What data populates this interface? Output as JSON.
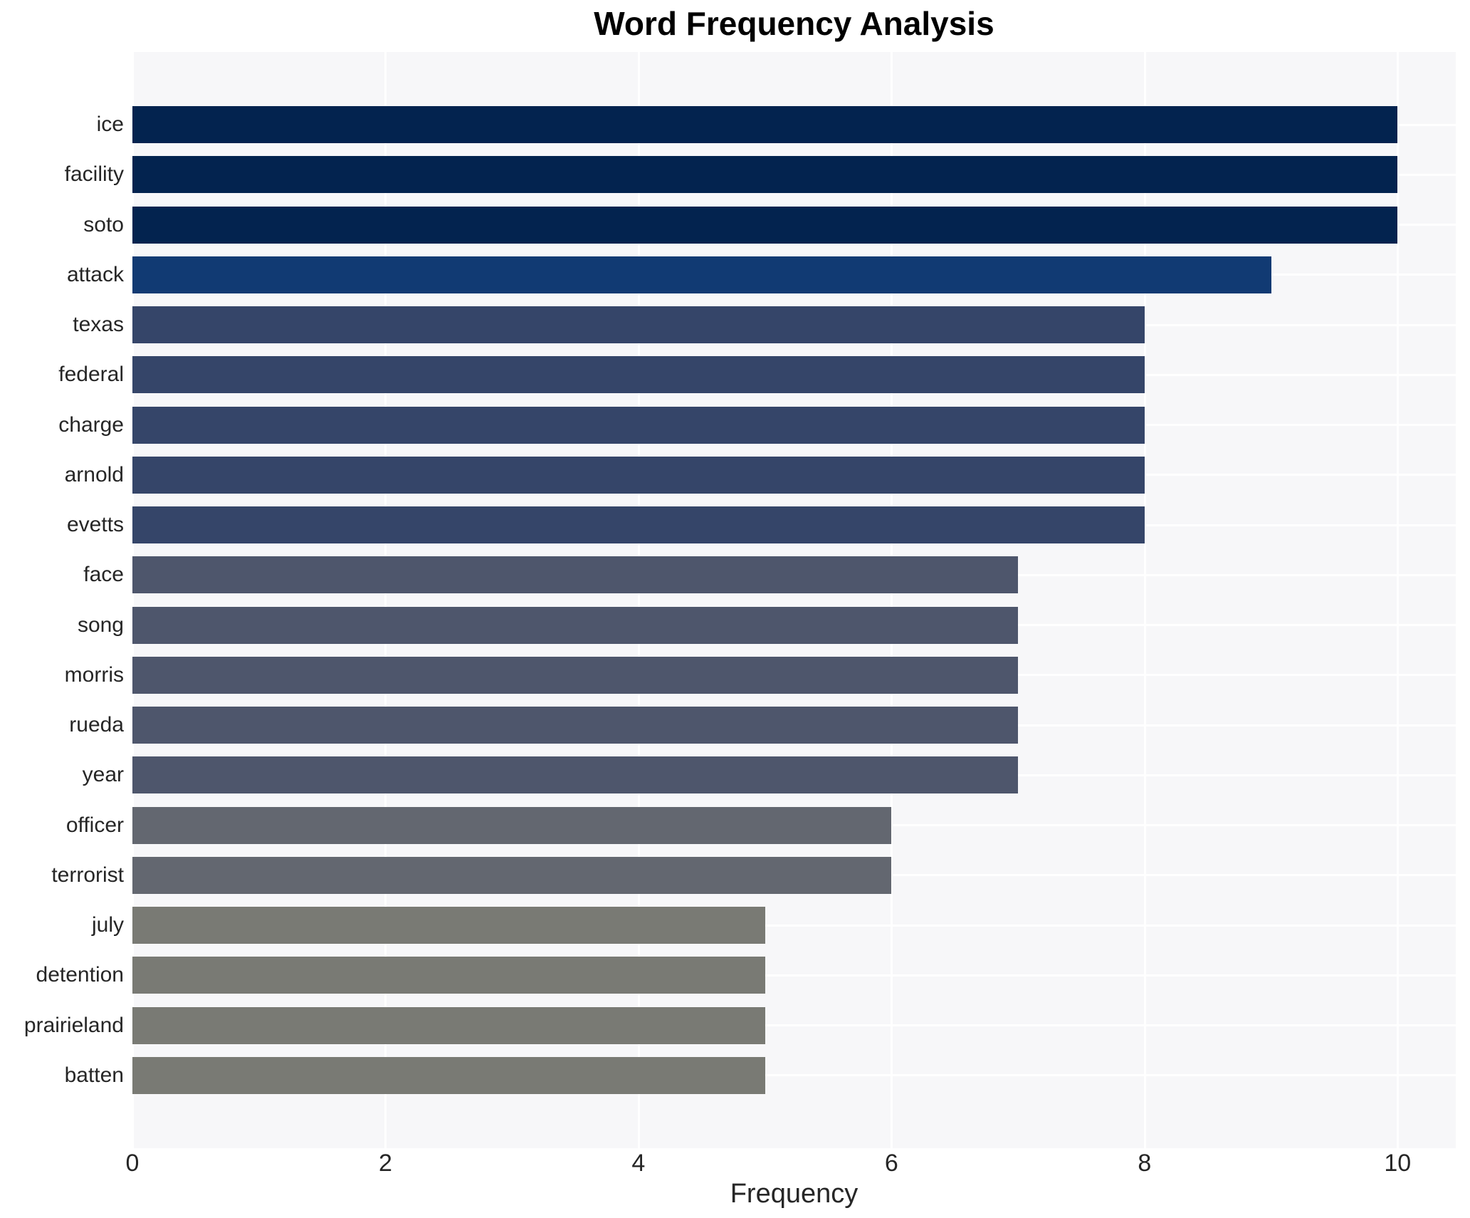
{
  "chart_data": {
    "type": "bar",
    "orientation": "horizontal",
    "title": "Word Frequency Analysis",
    "xlabel": "Frequency",
    "ylabel": "",
    "categories": [
      "ice",
      "facility",
      "soto",
      "attack",
      "texas",
      "federal",
      "charge",
      "arnold",
      "evetts",
      "face",
      "song",
      "morris",
      "rueda",
      "year",
      "officer",
      "terrorist",
      "july",
      "detention",
      "prairieland",
      "batten"
    ],
    "values": [
      10,
      10,
      10,
      9,
      8,
      8,
      8,
      8,
      8,
      7,
      7,
      7,
      7,
      7,
      6,
      6,
      5,
      5,
      5,
      5
    ],
    "bar_colors": [
      "#03234f",
      "#03234f",
      "#03234f",
      "#113a73",
      "#354569",
      "#354569",
      "#354569",
      "#354569",
      "#354569",
      "#4e566c",
      "#4e566c",
      "#4e566c",
      "#4e566c",
      "#4e566c",
      "#636770",
      "#636770",
      "#797a74",
      "#797a74",
      "#797a74",
      "#797a74"
    ],
    "xticks": [
      0,
      2,
      4,
      6,
      8,
      10
    ],
    "xlim": [
      0,
      10.46
    ],
    "grid": true,
    "legend": false,
    "colors": {
      "plot_background": "#f7f7f9",
      "figure_background": "#ffffff",
      "gridline": "#ffffff",
      "text": "#262626",
      "title_text": "#000000"
    }
  }
}
